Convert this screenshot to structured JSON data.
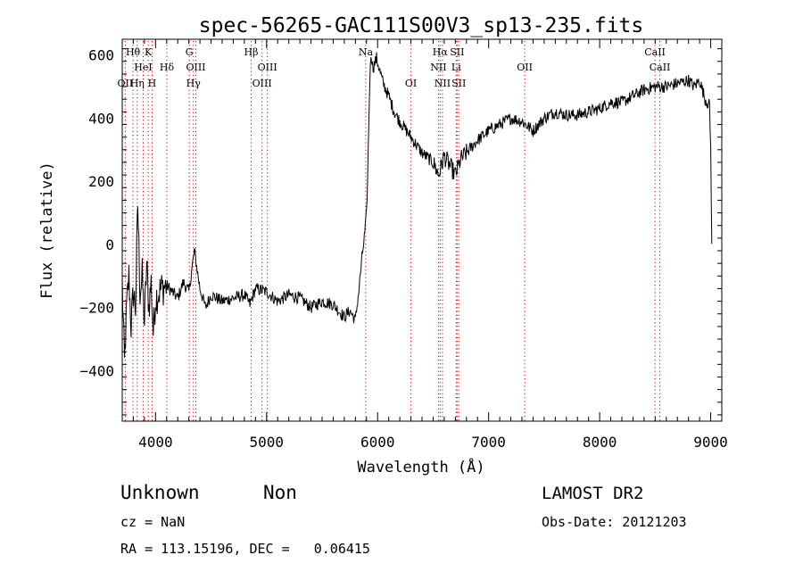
{
  "chart_data": {
    "type": "line",
    "title": "spec-56265-GAC111S00V3_sp13-235.fits",
    "xlabel": "Wavelength (Å)",
    "ylabel": "Flux (relative)",
    "xlim": [
      3700,
      9100
    ],
    "ylim": [
      -560,
      650
    ],
    "x_ticks": [
      4000,
      5000,
      6000,
      7000,
      8000,
      9000
    ],
    "y_ticks": [
      -400,
      -200,
      0,
      200,
      400,
      600
    ],
    "x_tick_labels": [
      "4000",
      "5000",
      "6000",
      "7000",
      "8000",
      "9000"
    ],
    "y_tick_labels": [
      "−400",
      "−200",
      "0",
      "200",
      "400",
      "600"
    ],
    "grid": false,
    "line_color": "#000000",
    "marker_color": "#cc0000",
    "series": [
      {
        "x": [
          3700,
          3720,
          3740,
          3760,
          3780,
          3800,
          3820,
          3840,
          3860,
          3880,
          3900,
          3920,
          3940,
          3960,
          3980,
          4000,
          4050,
          4100,
          4150,
          4200,
          4250,
          4300,
          4350,
          4400,
          4450,
          4500,
          4600,
          4700,
          4800,
          4850,
          4900,
          5000,
          5100,
          5200,
          5300,
          5400,
          5500,
          5600,
          5700,
          5750,
          5800,
          5830,
          5860,
          5880,
          5900,
          5910,
          5920,
          5930,
          5940,
          5960,
          5990,
          6050,
          6100,
          6150,
          6200,
          6300,
          6400,
          6500,
          6550,
          6600,
          6650,
          6700,
          6750,
          6800,
          6900,
          7000,
          7100,
          7200,
          7300,
          7400,
          7500,
          7600,
          7700,
          7800,
          7900,
          8000,
          8100,
          8200,
          8300,
          8400,
          8500,
          8600,
          8700,
          8800,
          8850,
          8900,
          8950,
          8990,
          9000,
          9010
        ],
        "y": [
          -120,
          -380,
          -200,
          -100,
          -260,
          -150,
          -200,
          130,
          -150,
          -100,
          -250,
          -60,
          -200,
          -120,
          -280,
          -170,
          -140,
          -130,
          -150,
          -170,
          -120,
          -150,
          -20,
          -140,
          -200,
          -160,
          -180,
          -170,
          -160,
          -190,
          -140,
          -150,
          -180,
          -160,
          -170,
          -200,
          -180,
          -190,
          -230,
          -210,
          -240,
          -150,
          -40,
          20,
          100,
          200,
          380,
          520,
          600,
          560,
          590,
          510,
          470,
          420,
          390,
          340,
          290,
          260,
          220,
          280,
          250,
          220,
          270,
          290,
          330,
          360,
          380,
          400,
          390,
          360,
          400,
          420,
          410,
          410,
          420,
          430,
          450,
          450,
          470,
          490,
          500,
          500,
          510,
          520,
          500,
          520,
          460,
          440,
          300,
          0
        ]
      }
    ],
    "lines": [
      {
        "label": "Hθ",
        "x": 3797,
        "row": 0
      },
      {
        "label": "K",
        "x": 3934,
        "row": 0
      },
      {
        "label": "HeI",
        "x": 3889,
        "row": 1
      },
      {
        "label": "Hδ",
        "x": 4102,
        "row": 1
      },
      {
        "label": "OII",
        "x": 3727,
        "row": 2
      },
      {
        "label": "Hη",
        "x": 3835,
        "row": 2
      },
      {
        "label": "H",
        "x": 3969,
        "row": 2
      },
      {
        "label": "G",
        "x": 4304,
        "row": 0
      },
      {
        "label": "OIII",
        "x": 4363,
        "row": 1
      },
      {
        "label": "Hγ",
        "x": 4341,
        "row": 2
      },
      {
        "label": "Hβ",
        "x": 4861,
        "row": 0
      },
      {
        "label": "OIII",
        "x": 5007,
        "row": 1
      },
      {
        "label": "OIII",
        "x": 4959,
        "row": 2
      },
      {
        "label": "Na",
        "x": 5893,
        "row": 0
      },
      {
        "label": "OI",
        "x": 6300,
        "row": 2
      },
      {
        "label": "Hα",
        "x": 6563,
        "row": 0
      },
      {
        "label": "SII",
        "x": 6716,
        "row": 0
      },
      {
        "label": "NII",
        "x": 6548,
        "row": 1
      },
      {
        "label": "Li",
        "x": 6708,
        "row": 1
      },
      {
        "label": "NII",
        "x": 6584,
        "row": 2
      },
      {
        "label": "SII",
        "x": 6731,
        "row": 2
      },
      {
        "label": "OII",
        "x": 7325,
        "row": 1
      },
      {
        "label": "CaII",
        "x": 8498,
        "row": 0
      },
      {
        "label": "CaII",
        "x": 8542,
        "row": 1
      }
    ],
    "line_marker_x": [
      3727,
      3797,
      3835,
      3889,
      3934,
      3969,
      4102,
      4304,
      4341,
      4363,
      4861,
      4959,
      5007,
      5893,
      6300,
      6548,
      6563,
      6584,
      6708,
      6716,
      6731,
      7325,
      8498,
      8542
    ]
  },
  "info": {
    "object_class": "Unknown",
    "subclass": "Non",
    "cz": "cz = NaN",
    "coords": "RA = 113.15196, DEC =   0.06415",
    "survey": "LAMOST DR2",
    "obs_date": "Obs-Date: 20121203"
  }
}
